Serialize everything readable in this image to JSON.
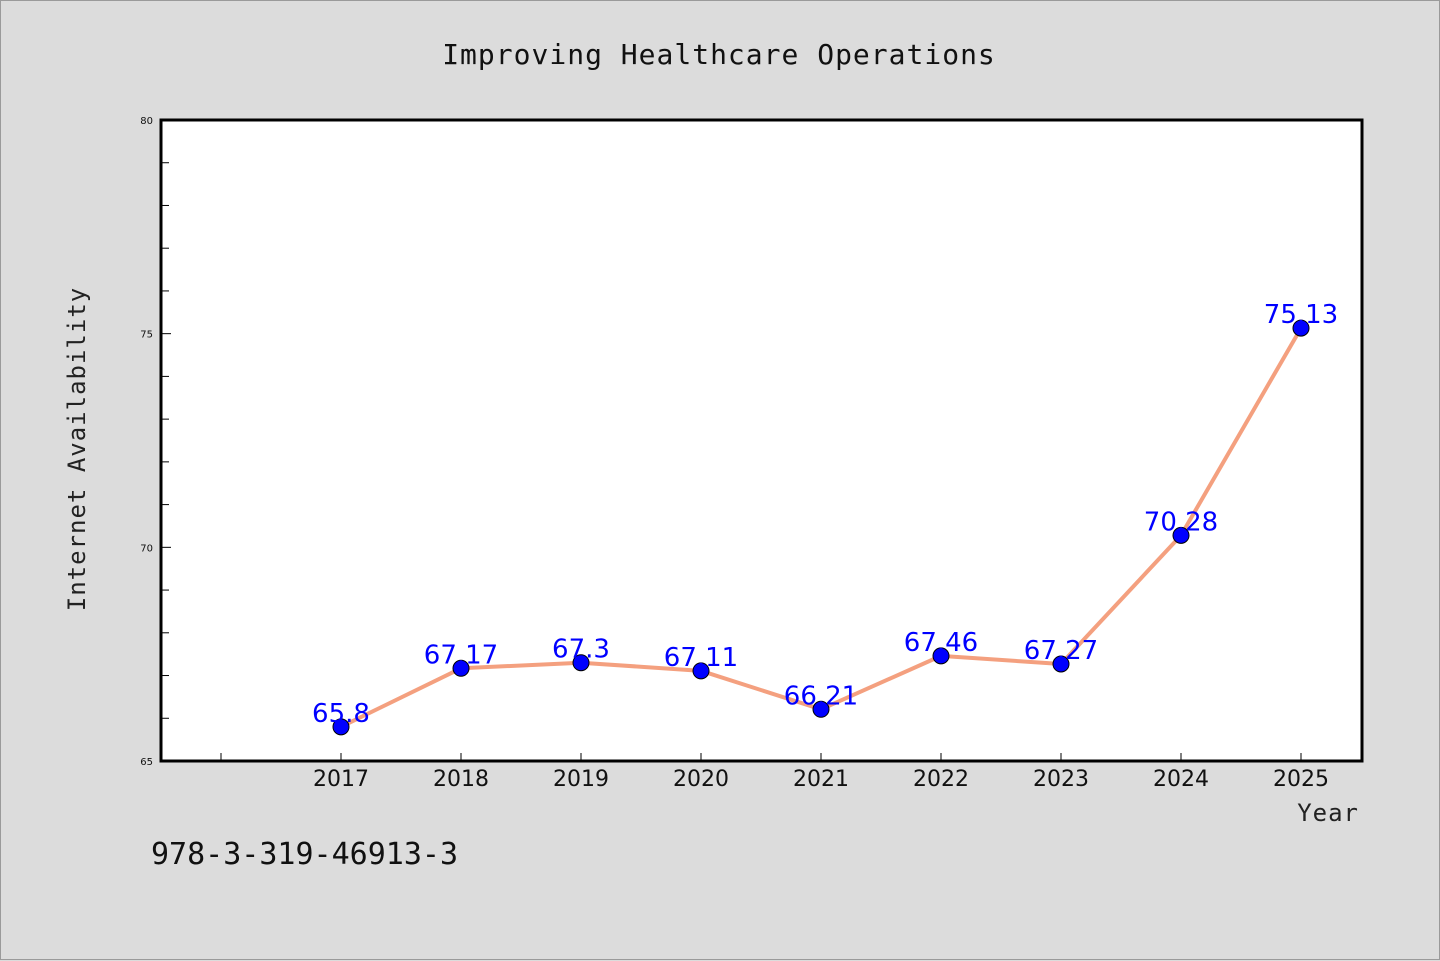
{
  "chart_data": {
    "type": "line",
    "title": "Improving Healthcare Operations",
    "xlabel": "Year",
    "ylabel": "Internet Availability",
    "categories": [
      "2017",
      "2018",
      "2019",
      "2020",
      "2021",
      "2022",
      "2023",
      "2024",
      "2025"
    ],
    "values": [
      65.8,
      67.17,
      67.3,
      67.11,
      66.21,
      67.46,
      67.27,
      70.28,
      75.13
    ],
    "data_labels": [
      "65.8",
      "67.17",
      "67.3",
      "67.11",
      "66.21",
      "67.46",
      "67.27",
      "70.28",
      "75.13"
    ],
    "y_tick_labels": [
      "65",
      "70",
      "75",
      "80"
    ],
    "ylim": [
      65,
      80
    ],
    "grid": false,
    "line_color": "#f4a07f",
    "marker_color": "#0000ff",
    "label_color": "#0000ff"
  },
  "caption": "978-3-319-46913-3"
}
